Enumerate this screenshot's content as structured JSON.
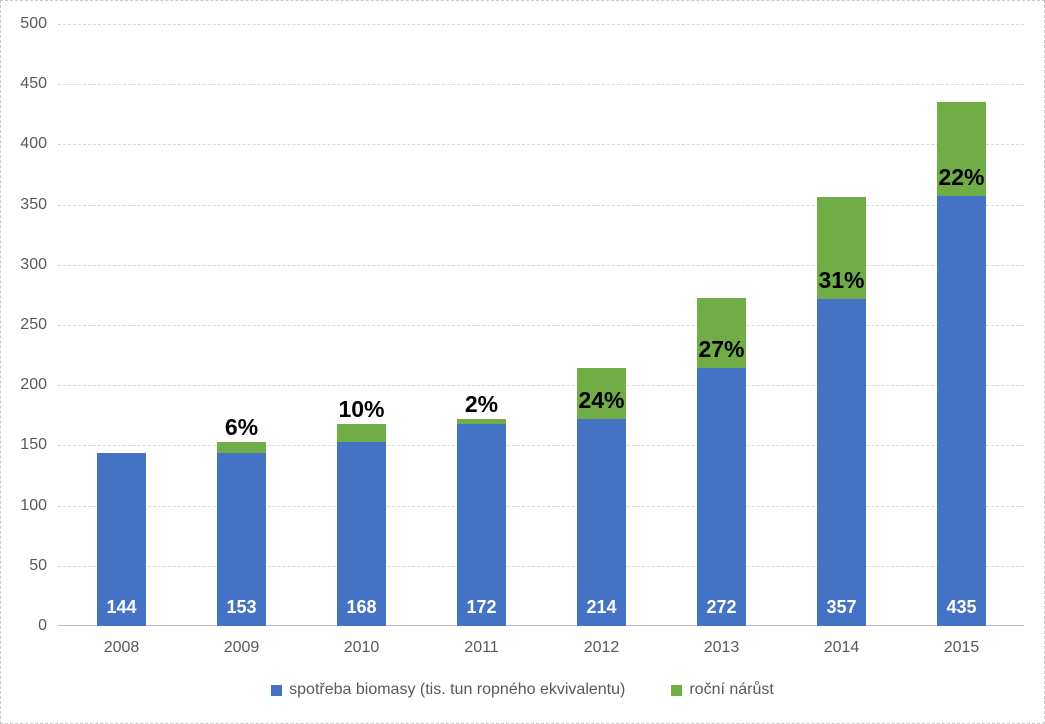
{
  "chart_data": {
    "type": "bar",
    "variant": "stacked-column",
    "categories": [
      "2008",
      "2009",
      "2010",
      "2011",
      "2012",
      "2013",
      "2014",
      "2015"
    ],
    "series": [
      {
        "name": "spotřeba biomasy (tis. tun ropného ekvivalentu)",
        "color": "#4472C4",
        "values": [
          144,
          144,
          153,
          168,
          172,
          214,
          272,
          357
        ]
      },
      {
        "name": "roční nárůst",
        "color": "#70AD47",
        "values": [
          0,
          9,
          15,
          4,
          42,
          58,
          85,
          78
        ]
      }
    ],
    "totals": [
      144,
      153,
      168,
      172,
      214,
      272,
      357,
      435
    ],
    "total_labels": [
      "144",
      "153",
      "168",
      "172",
      "214",
      "272",
      "357",
      "435"
    ],
    "growth_labels": [
      "",
      "6%",
      "10%",
      "2%",
      "24%",
      "27%",
      "31%",
      "22%"
    ],
    "y_tick_labels": [
      "500",
      "450",
      "400",
      "350",
      "300",
      "250",
      "200",
      "150",
      "100",
      "50",
      "0"
    ],
    "y_tick_values": [
      500,
      450,
      400,
      350,
      300,
      250,
      200,
      150,
      100,
      50,
      0
    ],
    "ylim": [
      0,
      500
    ],
    "xlabel": "",
    "ylabel": "",
    "grid": true,
    "legend_position": "bottom"
  },
  "colors": {
    "series_blue": "#4472C4",
    "series_green": "#70AD47",
    "axis_text": "#595959",
    "gridline": "#D9D9D9",
    "axis_line": "#C3C3C3",
    "value_label_text": "#FFFFFF",
    "pct_label_text": "#000000",
    "background": "#FFFFFF",
    "frame_border": "#C9C9C9"
  }
}
